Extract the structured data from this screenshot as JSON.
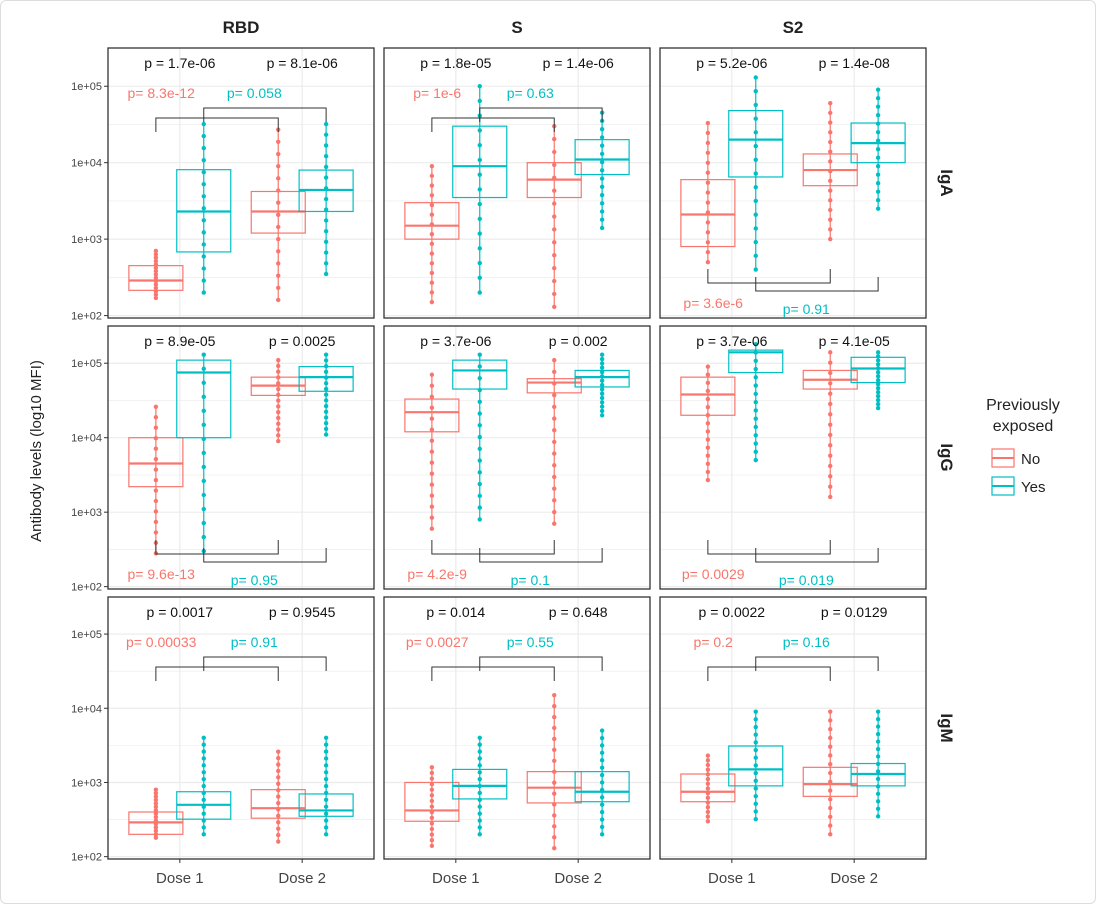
{
  "chart_data": {
    "type": "box",
    "ylabel": "Antibody levels (log10 MFI)",
    "yscale": "log",
    "ylim": [
      93,
      316000
    ],
    "yticks": [
      "1e+02",
      "1e+03",
      "1e+04",
      "1e+05"
    ],
    "ytick_values": [
      100,
      1000,
      10000,
      100000
    ],
    "categories": [
      "Dose 1",
      "Dose 2"
    ],
    "columns": [
      "RBD",
      "S",
      "S2"
    ],
    "rows": [
      "IgA",
      "IgG",
      "IgM"
    ],
    "grid": true,
    "legend": {
      "title": "Previously exposed",
      "position": "right",
      "entries": [
        {
          "name": "No",
          "color": "#F8766D"
        },
        {
          "name": "Yes",
          "color": "#00BFC4"
        }
      ]
    },
    "box_stats_order": [
      "min",
      "q1",
      "median",
      "q3",
      "max"
    ],
    "panels": [
      {
        "row": "IgA",
        "col": "RBD",
        "p_dose": [
          "p = 1.7e-06",
          "p = 8.1e-06"
        ],
        "p_no": "p= 8.3e-12",
        "p_yes": "p= 0.058",
        "bracket_position": "top",
        "boxes": {
          "No": [
            [
              170,
              214,
              288,
              450,
              700
            ],
            [
              160,
              1200,
              2300,
              4200,
              27000
            ]
          ],
          "Yes": [
            [
              200,
              680,
              2300,
              8100,
              32000
            ],
            [
              350,
              2300,
              4400,
              8000,
              32000
            ]
          ]
        }
      },
      {
        "row": "IgA",
        "col": "S",
        "p_dose": [
          "p = 1.8e-05",
          "p = 1.4e-06"
        ],
        "p_no": "p= 1e-6",
        "p_yes": "p= 0.63",
        "bracket_position": "top",
        "boxes": {
          "No": [
            [
              150,
              1000,
              1500,
              3000,
              9000
            ],
            [
              130,
              3500,
              6000,
              10000,
              30000
            ]
          ],
          "Yes": [
            [
              200,
              3500,
              9000,
              30000,
              100000
            ],
            [
              1400,
              7000,
              11000,
              20000,
              45000
            ]
          ]
        }
      },
      {
        "row": "IgA",
        "col": "S2",
        "p_dose": [
          "p = 5.2e-06",
          "p = 1.4e-08"
        ],
        "p_no": "p= 3.6e-6",
        "p_yes": "p= 0.91",
        "bracket_position": "bottom",
        "boxes": {
          "No": [
            [
              500,
              800,
              2100,
              6000,
              33000
            ],
            [
              1000,
              5000,
              8000,
              13000,
              60000
            ]
          ],
          "Yes": [
            [
              400,
              6500,
              20000,
              48000,
              130000
            ],
            [
              2500,
              10000,
              18000,
              33000,
              90000
            ]
          ]
        }
      },
      {
        "row": "IgG",
        "col": "RBD",
        "p_dose": [
          "p = 8.9e-05",
          "p = 0.0025"
        ],
        "p_no": "p= 9.6e-13",
        "p_yes": "p= 0.95",
        "bracket_position": "bottom",
        "boxes": {
          "No": [
            [
              280,
              2200,
              4500,
              10000,
              26000
            ],
            [
              9000,
              37000,
              50000,
              65000,
              110000
            ]
          ],
          "Yes": [
            [
              300,
              10000,
              75000,
              110000,
              130000
            ],
            [
              11000,
              42000,
              65000,
              90000,
              130000
            ]
          ]
        }
      },
      {
        "row": "IgG",
        "col": "S",
        "p_dose": [
          "p = 3.7e-06",
          "p = 0.002"
        ],
        "p_no": "p= 4.2e-9",
        "p_yes": "p= 0.1",
        "bracket_position": "bottom",
        "boxes": {
          "No": [
            [
              600,
              12000,
              22000,
              33000,
              70000
            ],
            [
              700,
              40000,
              55000,
              62000,
              110000
            ]
          ],
          "Yes": [
            [
              800,
              45000,
              80000,
              110000,
              130000
            ],
            [
              20000,
              48000,
              65000,
              80000,
              130000
            ]
          ]
        }
      },
      {
        "row": "IgG",
        "col": "S2",
        "p_dose": [
          "p = 3.7e-06",
          "p = 4.1e-05"
        ],
        "p_no": "p= 0.0029",
        "p_yes": "p= 0.019",
        "bracket_position": "bottom",
        "boxes": {
          "No": [
            [
              2700,
              20000,
              38000,
              65000,
              90000
            ],
            [
              1600,
              45000,
              60000,
              80000,
              140000
            ]
          ],
          "Yes": [
            [
              5000,
              75000,
              140000,
              150000,
              180000
            ],
            [
              25000,
              55000,
              85000,
              120000,
              140000
            ]
          ]
        }
      },
      {
        "row": "IgM",
        "col": "RBD",
        "p_dose": [
          "p = 0.0017",
          "p = 0.9545"
        ],
        "p_no": "p= 0.00033",
        "p_yes": "p= 0.91",
        "bracket_position": "top",
        "boxes": {
          "No": [
            [
              180,
              200,
              290,
              400,
              800
            ],
            [
              160,
              330,
              450,
              800,
              2600
            ]
          ],
          "Yes": [
            [
              200,
              320,
              500,
              750,
              4000
            ],
            [
              200,
              350,
              420,
              700,
              4000
            ]
          ]
        }
      },
      {
        "row": "IgM",
        "col": "S",
        "p_dose": [
          "p = 0.014",
          "p = 0.648"
        ],
        "p_no": "p= 0.0027",
        "p_yes": "p= 0.55",
        "bracket_position": "top",
        "boxes": {
          "No": [
            [
              140,
              300,
              420,
              1000,
              1600
            ],
            [
              130,
              530,
              850,
              1400,
              15000
            ]
          ],
          "Yes": [
            [
              200,
              600,
              900,
              1500,
              4000
            ],
            [
              200,
              550,
              750,
              1400,
              5000
            ]
          ]
        }
      },
      {
        "row": "IgM",
        "col": "S2",
        "p_dose": [
          "p = 0.0022",
          "p = 0.0129"
        ],
        "p_no": "p= 0.2",
        "p_yes": "p= 0.16",
        "bracket_position": "top",
        "boxes": {
          "No": [
            [
              300,
              550,
              750,
              1300,
              2300
            ],
            [
              200,
              650,
              950,
              1600,
              9000
            ]
          ],
          "Yes": [
            [
              320,
              900,
              1500,
              3100,
              9000
            ],
            [
              350,
              900,
              1300,
              1800,
              9000
            ]
          ]
        }
      }
    ]
  }
}
